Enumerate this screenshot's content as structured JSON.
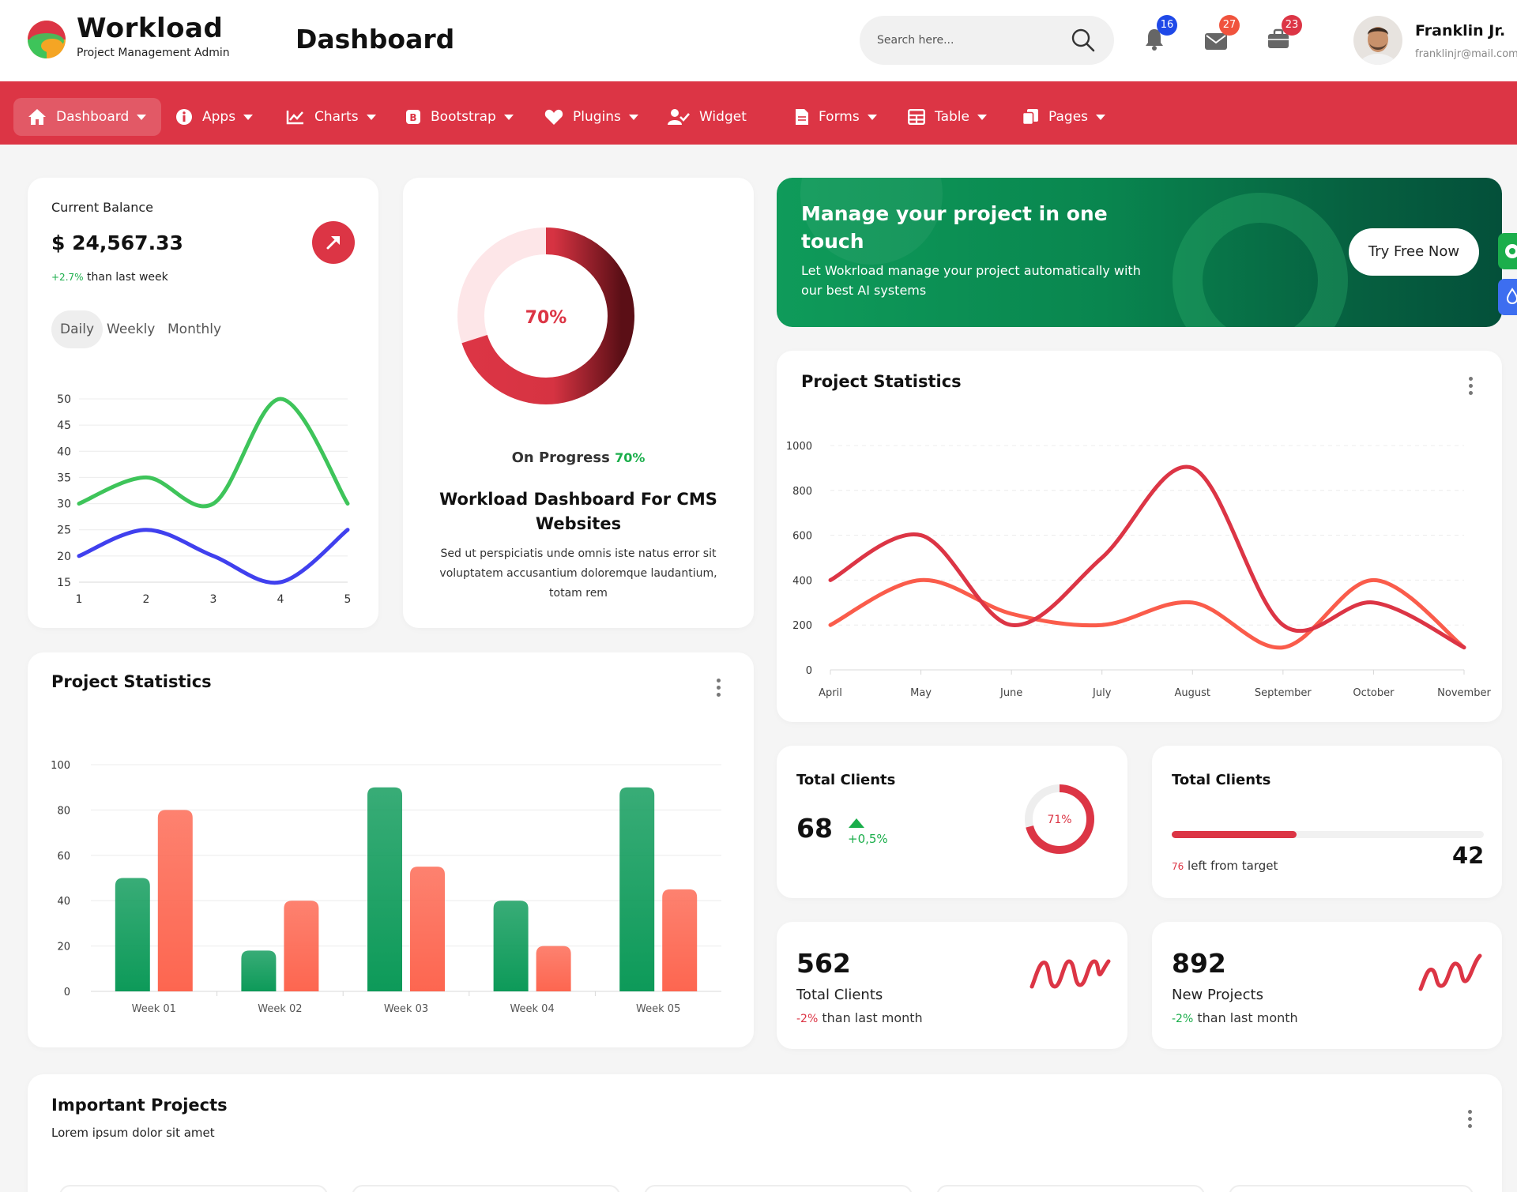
{
  "header": {
    "brand_name": "Workload",
    "brand_sub": "Project Management Admin",
    "page_title": "Dashboard",
    "search_placeholder": "Search here...",
    "notifications": [
      {
        "icon": "bell-icon",
        "count": "16",
        "color": "#1f49e8"
      },
      {
        "icon": "mail-icon",
        "count": "27",
        "color": "#f0533d"
      },
      {
        "icon": "briefcase-icon",
        "count": "23",
        "color": "#dc3545"
      }
    ],
    "user_name": "Franklin Jr.",
    "user_email": "franklinjr@mail.com"
  },
  "nav": {
    "items": [
      {
        "label": "Dashboard",
        "icon": "home-icon",
        "caret": true
      },
      {
        "label": "Apps",
        "icon": "info-icon",
        "caret": true
      },
      {
        "label": "Charts",
        "icon": "chart-line-icon",
        "caret": true
      },
      {
        "label": "Bootstrap",
        "icon": "bootstrap-icon",
        "caret": true
      },
      {
        "label": "Plugins",
        "icon": "heart-icon",
        "caret": true
      },
      {
        "label": "Widget",
        "icon": "user-check-icon",
        "caret": false
      },
      {
        "label": "Forms",
        "icon": "file-icon",
        "caret": true
      },
      {
        "label": "Table",
        "icon": "table-icon",
        "caret": true
      },
      {
        "label": "Pages",
        "icon": "copy-icon",
        "caret": true
      }
    ],
    "active": "Dashboard",
    "color": "#dc3545"
  },
  "balance": {
    "label": "Current Balance",
    "value": "$ 24,567.33",
    "change": "+2.7%",
    "change_suffix": " than last week",
    "tabs": [
      "Daily",
      "Weekly",
      "Monthly"
    ],
    "active_tab": "Daily"
  },
  "progress": {
    "percent_label": "70%",
    "percent_value": 70,
    "status_label": "On Progress",
    "status_value": "70%",
    "title": "Workload Dashboard For CMS Websites",
    "description": "Sed ut perspiciatis unde omnis iste natus error sit voluptatem accusantium doloremque laudantium, totam rem"
  },
  "banner": {
    "title": "Manage your project in one touch",
    "description": "Let Wokrload manage your project automatically with our best AI systems",
    "button_label": "Try Free Now"
  },
  "project_stats_line": {
    "title": "Project Statistics"
  },
  "project_stats_bar": {
    "title": "Project Statistics"
  },
  "total_clients_donut": {
    "title": "Total Clients",
    "value": "68",
    "change": "+0,5%",
    "percent_label": "71%",
    "percent_value": 71
  },
  "total_clients_progress": {
    "title": "Total Clients",
    "left_value": "76",
    "left_suffix": " left from target",
    "value": "42",
    "progress_fraction": 0.4
  },
  "mini_cards": [
    {
      "value": "562",
      "label": "Total Clients",
      "change": "-2%",
      "change_suffix": " than last month",
      "change_color": "#dc3545"
    },
    {
      "value": "892",
      "label": "New Projects",
      "change": "-2%",
      "change_suffix": " than last month",
      "change_color": "#1bae4b"
    }
  ],
  "important_projects": {
    "title": "Important Projects",
    "subtitle": "Lorem ipsum dolor sit amet"
  },
  "chart_data": [
    {
      "type": "line",
      "x": [
        1,
        2,
        3,
        4,
        5
      ],
      "ylim": [
        15,
        50
      ],
      "yticks": [
        15,
        20,
        25,
        30,
        35,
        40,
        45,
        50
      ],
      "grid": true,
      "series": [
        {
          "color": "#3ec45a",
          "values": [
            30,
            35,
            30,
            50,
            30
          ]
        },
        {
          "color": "#4040ee",
          "values": [
            20,
            25,
            20,
            15,
            25
          ]
        }
      ]
    },
    {
      "type": "line",
      "categories": [
        "April",
        "May",
        "June",
        "July",
        "August",
        "September",
        "October",
        "November"
      ],
      "ylim": [
        0,
        1000
      ],
      "yticks": [
        0,
        200,
        400,
        600,
        800,
        1000
      ],
      "grid": true,
      "series": [
        {
          "color": "#dc3545",
          "values": [
            400,
            600,
            200,
            500,
            900,
            200,
            300,
            100
          ]
        },
        {
          "color": "#fa5c4b",
          "values": [
            200,
            400,
            250,
            200,
            300,
            100,
            400,
            100
          ]
        }
      ]
    },
    {
      "type": "bar",
      "categories": [
        "Week 01",
        "Week 02",
        "Week 03",
        "Week 04",
        "Week 05"
      ],
      "ylim": [
        0,
        100
      ],
      "yticks": [
        0,
        20,
        40,
        60,
        80,
        100
      ],
      "grid": true,
      "series": [
        {
          "color": "#0d9a59",
          "values": [
            50,
            18,
            90,
            40,
            90
          ]
        },
        {
          "color": "#fd6650",
          "values": [
            80,
            40,
            55,
            20,
            45
          ]
        }
      ]
    }
  ]
}
